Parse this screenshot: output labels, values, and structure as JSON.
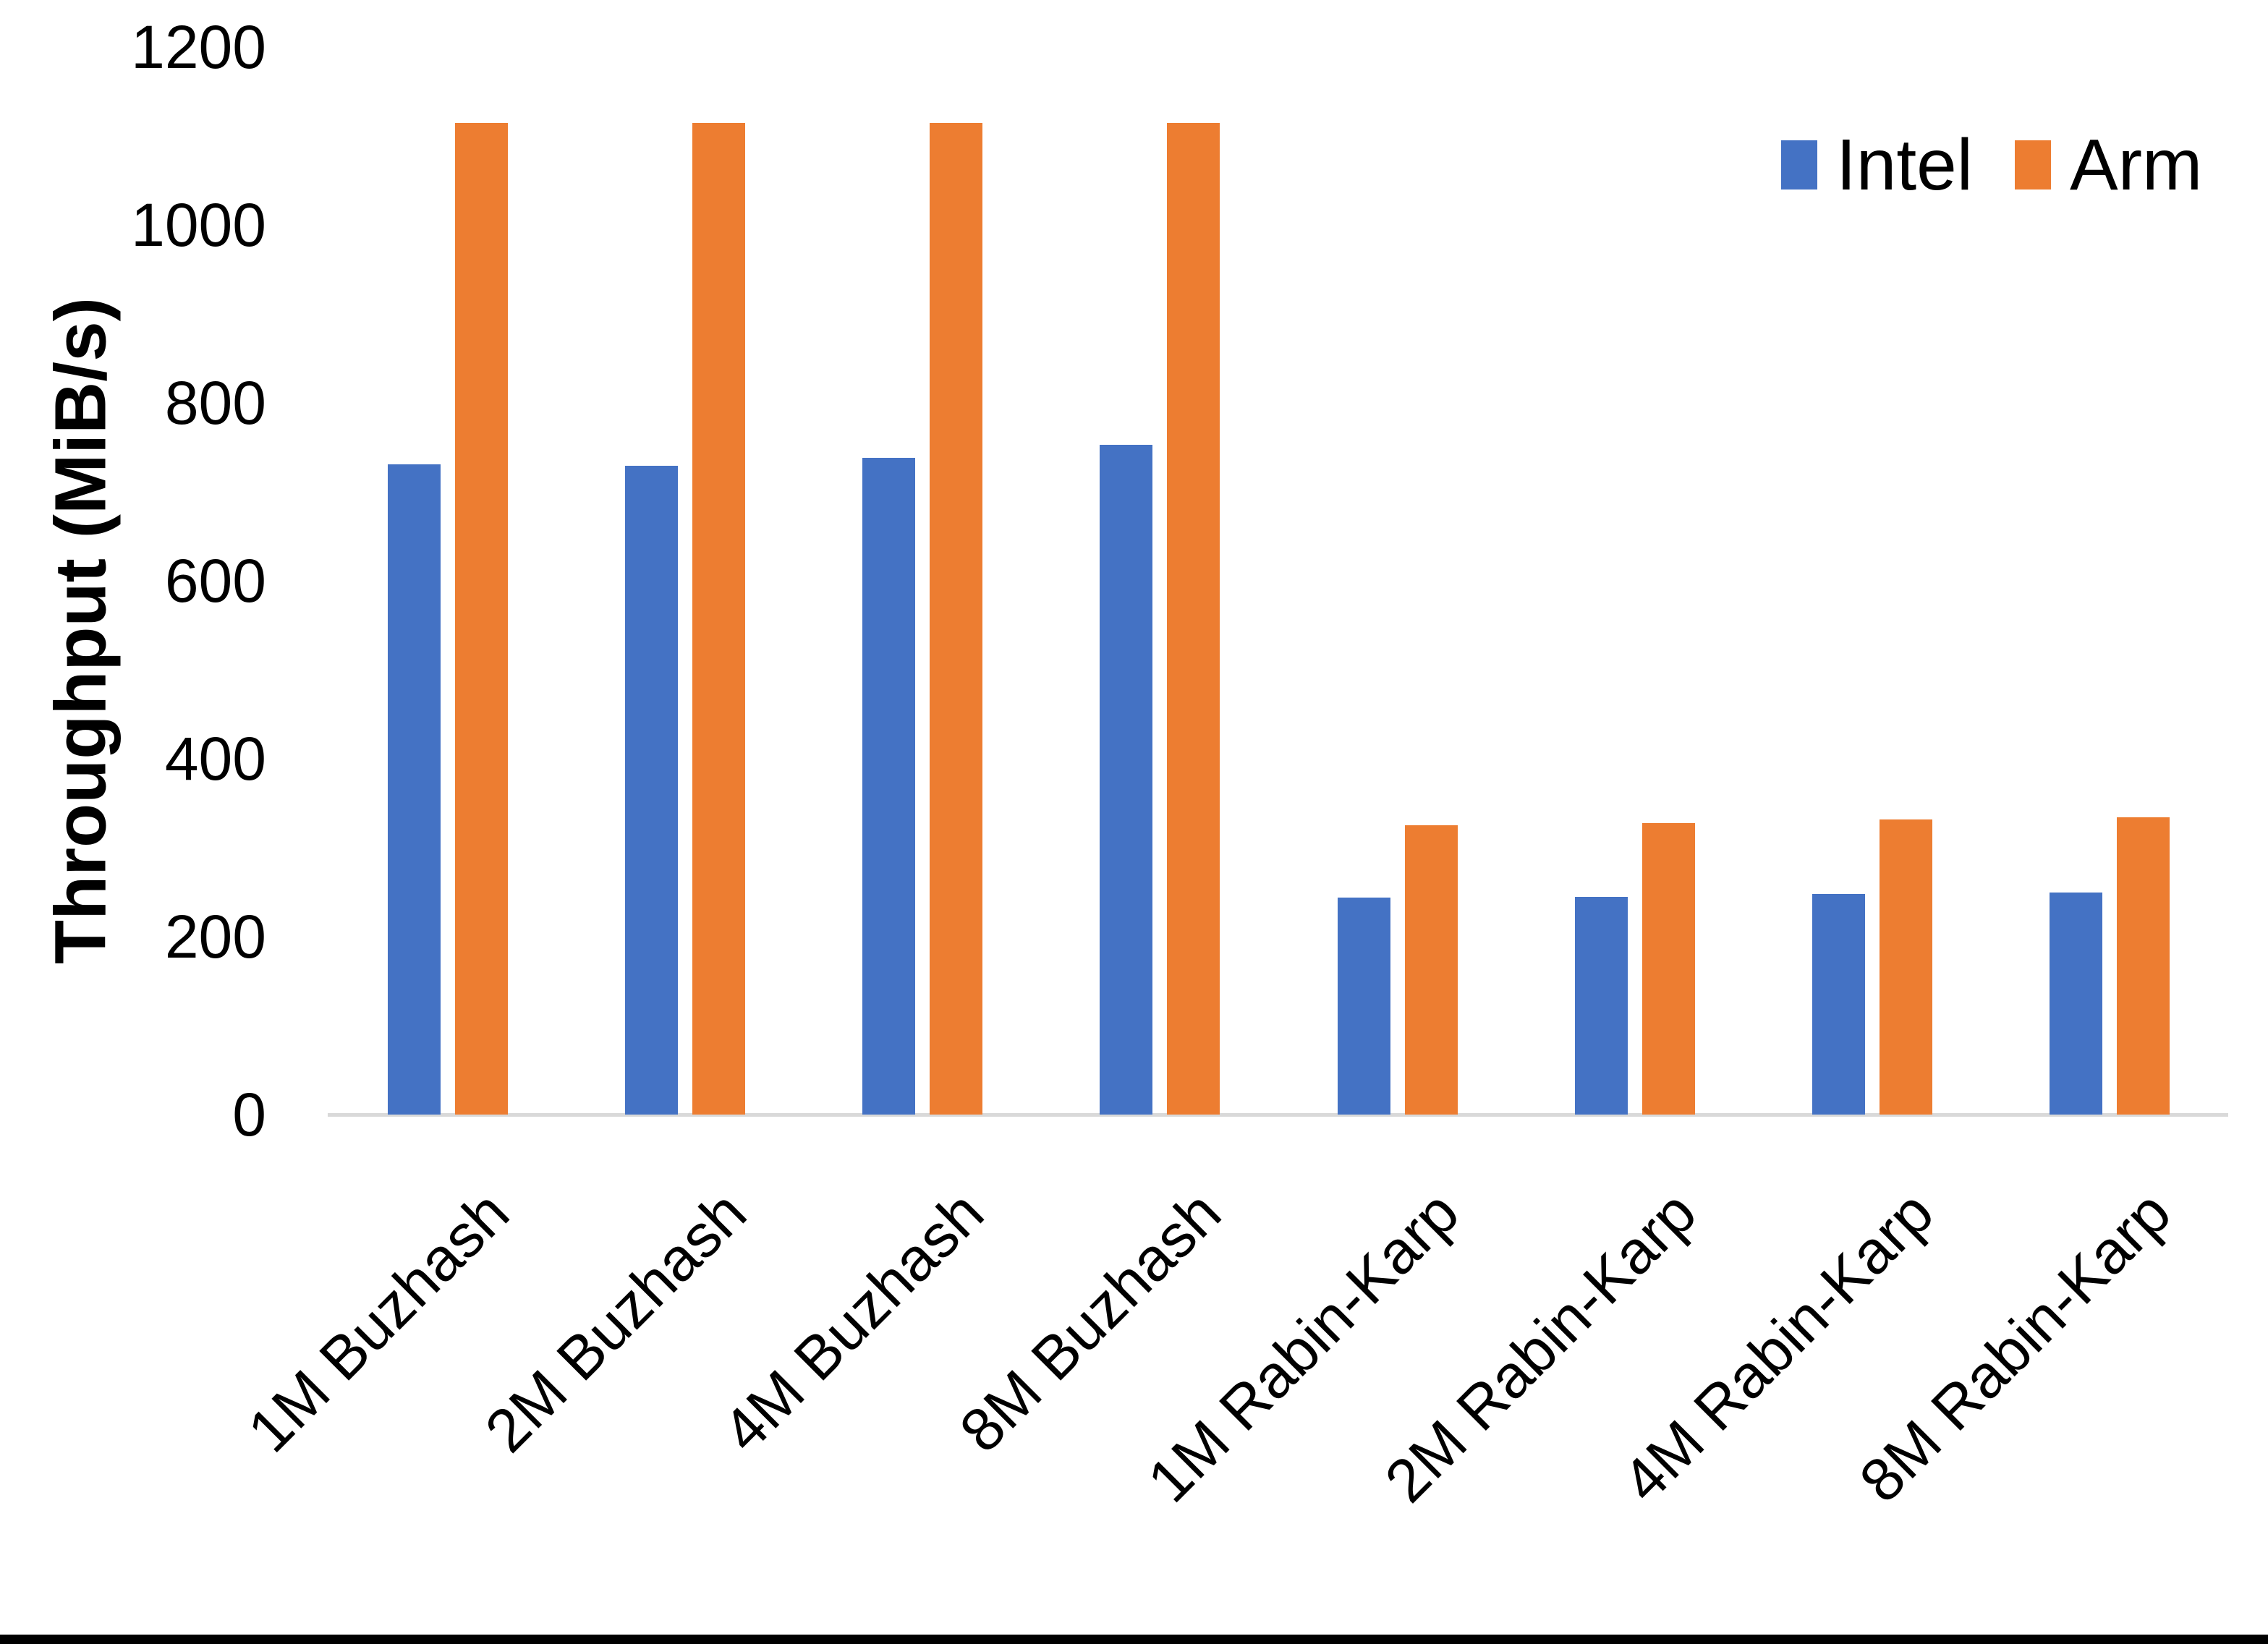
{
  "chart_data": {
    "type": "bar",
    "title": "",
    "xlabel": "",
    "ylabel": "Throughput (MiB/s)",
    "categories": [
      "1M Buzhash",
      "2M Buzhash",
      "4M Buzhash",
      "8M Buzhash",
      "1M Rabin-Karp",
      "2M Rabin-Karp",
      "4M Rabin-Karp",
      "8M Rabin-Karp"
    ],
    "series": [
      {
        "name": "Intel",
        "color": "#4472C4",
        "values": [
          731,
          729,
          738,
          753,
          244,
          245,
          248,
          250
        ]
      },
      {
        "name": "Arm",
        "color": "#ED7D31",
        "values": [
          1115,
          1115,
          1115,
          1115,
          325,
          328,
          332,
          334
        ]
      }
    ],
    "ylim": [
      0,
      1200
    ],
    "y_ticks": [
      0,
      200,
      400,
      600,
      800,
      1000,
      1200
    ],
    "grid": false,
    "legend_position": "top-right",
    "axis_line_color": "#d9d9d9",
    "text_color": "#000000"
  }
}
